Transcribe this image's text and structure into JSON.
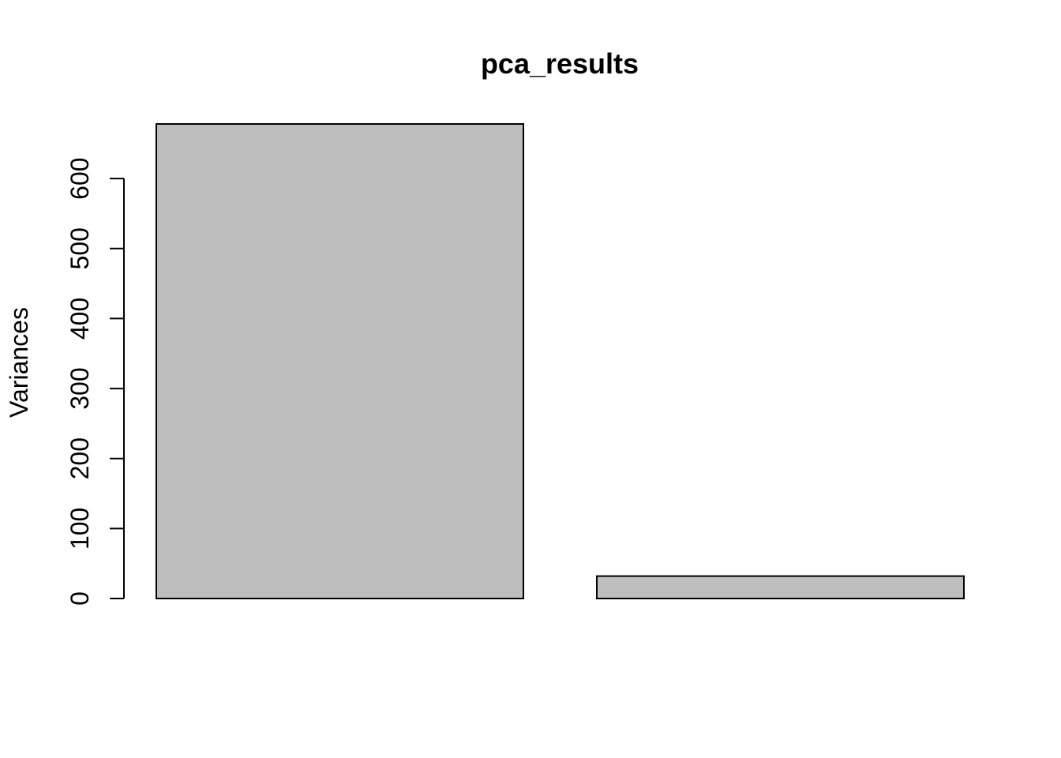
{
  "chart_data": {
    "type": "bar",
    "title": "pca_results",
    "xlabel": "",
    "ylabel": "Variances",
    "categories": [
      "",
      ""
    ],
    "values": [
      678,
      32
    ],
    "ylim": [
      0,
      678
    ],
    "yticks": [
      0,
      100,
      200,
      300,
      400,
      500,
      600
    ],
    "grid": false,
    "legend": "none",
    "bar_color": "#bebebe",
    "border_color": "#000000"
  }
}
